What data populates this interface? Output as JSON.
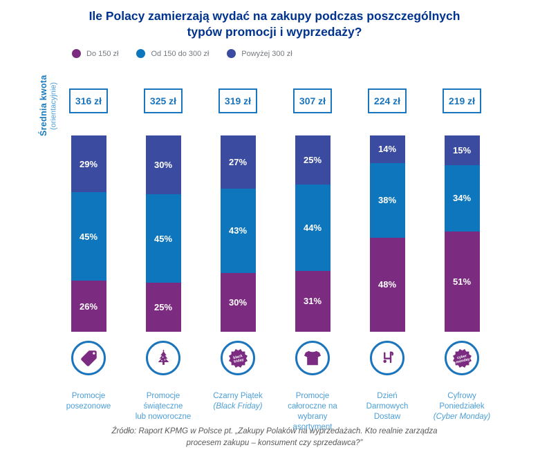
{
  "title": "Ile Polacy zamierzają wydać na zakupy podczas poszczególnych\ntypów promocji i wyprzedaży?",
  "y_axis": {
    "label_bold": "Średnia kwota",
    "label_note": "(orientacyjnie)"
  },
  "legend": [
    {
      "label": "Do 150 zł",
      "color": "#7B2B80"
    },
    {
      "label": "Od 150 do 300 zł",
      "color": "#0E76BC"
    },
    {
      "label": "Powyżej 300 zł",
      "color": "#3B4BA0"
    }
  ],
  "columns": [
    {
      "amount": "316 zł",
      "pct_under150": "26%",
      "pct_150_300": "45%",
      "pct_over300": "29%",
      "label": "Promocje\nposezonowe",
      "label_italic": "",
      "icon": "price-tag-icon"
    },
    {
      "amount": "325 zł",
      "pct_under150": "25%",
      "pct_150_300": "45%",
      "pct_over300": "30%",
      "label": "Promocje\nświąteczne\nlub noworoczne",
      "label_italic": "",
      "icon": "christmas-tree-icon"
    },
    {
      "amount": "319 zł",
      "pct_under150": "30%",
      "pct_150_300": "43%",
      "pct_over300": "27%",
      "label": "Czarny Piątek",
      "label_italic": "(Black Friday)",
      "icon": "black-friday-badge-icon"
    },
    {
      "amount": "307 zł",
      "pct_under150": "31%",
      "pct_150_300": "44%",
      "pct_over300": "25%",
      "label": "Promocje\ncałoroczne na wybrany\nasortyment",
      "label_italic": "",
      "icon": "tshirt-icon"
    },
    {
      "amount": "224 zł",
      "pct_under150": "48%",
      "pct_150_300": "38%",
      "pct_over300": "14%",
      "label": "Dzień\nDarmowych\nDostaw",
      "label_italic": "",
      "icon": "delivery-trolley-icon"
    },
    {
      "amount": "219 zł",
      "pct_under150": "51%",
      "pct_150_300": "34%",
      "pct_over300": "15%",
      "label": "Cyfrowy\nPoniedziałek",
      "label_italic": "(Cyber Monday)",
      "icon": "cyber-monday-badge-icon"
    }
  ],
  "badges": {
    "black_friday": [
      "black",
      "friday"
    ],
    "cyber_monday": [
      "cyber",
      "monday"
    ]
  },
  "source": "Źródło: Raport KPMG w Polsce pt. „Zakupy Polaków na wyprzedażach. Kto realnie zarządza\nprocesem zakupu – konsument czy sprzedawca?”",
  "colors": {
    "title_navy": "#00338D",
    "box_border_blue": "#1B75BC",
    "light_blue_text": "#4C9ED6",
    "legend_text_gray": "#747A80",
    "source_gray": "#58595B",
    "icon_purple": "#7B2B80"
  },
  "chart_data": {
    "type": "bar",
    "subtype": "stacked-100-percent",
    "title": "Ile Polacy zamierzają wydać na zakupy podczas poszczególnych typów promocji i wyprzedaży?",
    "categories": [
      "Promocje posezonowe",
      "Promocje świąteczne lub noworoczne",
      "Czarny Piątek (Black Friday)",
      "Promocje całoroczne na wybrany asortyment",
      "Dzień Darmowych Dostaw",
      "Cyfrowy Poniedziałek (Cyber Monday)"
    ],
    "series": [
      {
        "name": "Do 150 zł",
        "color": "#7B2B80",
        "values": [
          26,
          25,
          30,
          31,
          48,
          51
        ]
      },
      {
        "name": "Od 150 do 300 zł",
        "color": "#0E76BC",
        "values": [
          45,
          45,
          43,
          44,
          38,
          34
        ]
      },
      {
        "name": "Powyżej 300 zł",
        "color": "#3B4BA0",
        "values": [
          29,
          30,
          27,
          25,
          14,
          15
        ]
      }
    ],
    "avg_amounts_pln": [
      316,
      325,
      319,
      307,
      224,
      219
    ],
    "unit": "%",
    "ylabel": "Średnia kwota (orientacyjnie)",
    "ylim": [
      0,
      100
    ],
    "grid": false,
    "legend_position": "top-left",
    "source": "Źródło: Raport KPMG w Polsce pt. „Zakupy Polaków na wyprzedażach. Kto realnie zarządza procesem zakupu – konsument czy sprzedawca?”"
  }
}
